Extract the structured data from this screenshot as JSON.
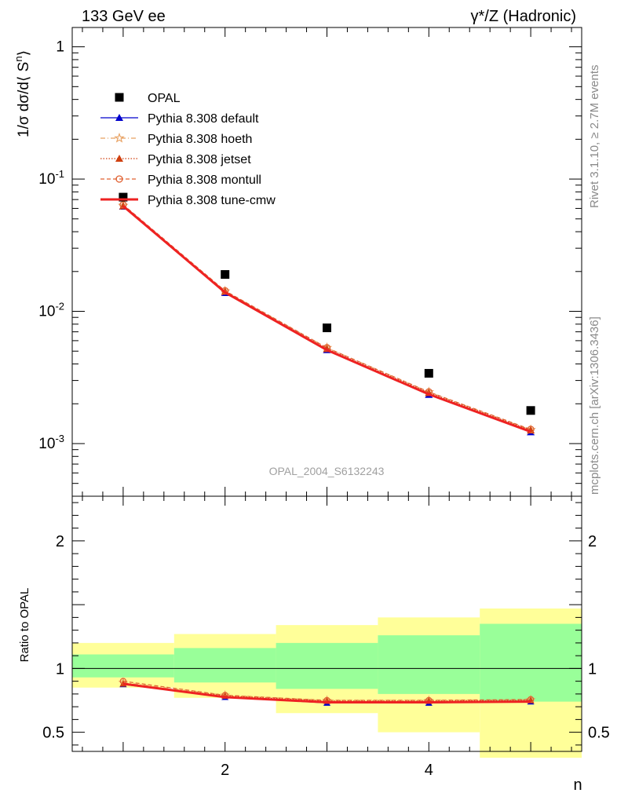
{
  "header": {
    "left": "133 GeV ee",
    "right": "γ*/Z (Hadronic)"
  },
  "side": {
    "rivet": "Rivet 3.1.10, ≥ 2.7M events",
    "mcplots": "mcplots.cern.ch [arXiv:1306.3436]"
  },
  "watermark": "OPAL_2004_S6132243",
  "colors": {
    "data": "#000000",
    "default": "#0000cc",
    "hoeth": "#e8a060",
    "jetset": "#d04010",
    "montull": "#e06030",
    "cmw": "#ee2222",
    "band_green": "#99ff99",
    "band_yellow": "#ffff99"
  },
  "chart_data": [
    {
      "type": "scatter",
      "yscale": "log",
      "ylabel": "1/σ dσ/d⟨ S^n⟩",
      "xlim": [
        0.5,
        5.5
      ],
      "ylim": [
        0.0004,
        1.4
      ],
      "ytick_labels": [
        "1",
        "10^-1",
        "10^-2",
        "10^-3"
      ],
      "legend_position": "top-left",
      "x": [
        1,
        2,
        3,
        4,
        5
      ],
      "series": [
        {
          "name": "OPAL",
          "marker": "square",
          "values": [
            0.073,
            0.019,
            0.0075,
            0.0034,
            0.00178
          ]
        },
        {
          "name": "Pythia 8.308 default",
          "marker": "triangle",
          "values": [
            0.062,
            0.0138,
            0.0051,
            0.00234,
            0.00122
          ]
        },
        {
          "name": "Pythia 8.308 hoeth",
          "marker": "star",
          "values": [
            0.063,
            0.0142,
            0.0053,
            0.00245,
            0.00127
          ]
        },
        {
          "name": "Pythia 8.308 jetset",
          "marker": "triangle",
          "values": [
            0.0625,
            0.0141,
            0.0052,
            0.00242,
            0.00126
          ]
        },
        {
          "name": "Pythia 8.308 montull",
          "marker": "circle",
          "values": [
            0.064,
            0.0143,
            0.0053,
            0.00246,
            0.00128
          ]
        },
        {
          "name": "Pythia 8.308 tune-cmw",
          "marker": "none",
          "values": [
            0.0625,
            0.0139,
            0.0051,
            0.00236,
            0.00123
          ]
        }
      ]
    },
    {
      "type": "line",
      "ylabel": "Ratio to OPAL",
      "xlabel": "n",
      "xlim": [
        0.5,
        5.5
      ],
      "ylim": [
        0.35,
        2.35
      ],
      "x_ticks": [
        2,
        4
      ],
      "y_ticks": [
        0.5,
        1,
        2
      ],
      "reference_line": 1,
      "bands": {
        "edges": [
          0.5,
          1.5,
          2.5,
          3.5,
          4.5,
          5.5
        ],
        "yellow": [
          [
            0.85,
            1.2
          ],
          [
            0.77,
            1.27
          ],
          [
            0.65,
            1.34
          ],
          [
            0.5,
            1.4
          ],
          [
            0.3,
            1.47
          ]
        ],
        "green": [
          [
            0.93,
            1.11
          ],
          [
            0.89,
            1.16
          ],
          [
            0.84,
            1.2
          ],
          [
            0.8,
            1.26
          ],
          [
            0.74,
            1.35
          ]
        ]
      },
      "x": [
        1,
        2,
        3,
        4,
        5
      ],
      "series": [
        {
          "name": "Pythia 8.308 default",
          "values": [
            0.875,
            0.775,
            0.73,
            0.73,
            0.74
          ]
        },
        {
          "name": "Pythia 8.308 hoeth",
          "values": [
            0.89,
            0.79,
            0.75,
            0.75,
            0.755
          ]
        },
        {
          "name": "Pythia 8.308 jetset",
          "values": [
            0.88,
            0.785,
            0.745,
            0.745,
            0.75
          ]
        },
        {
          "name": "Pythia 8.308 montull",
          "values": [
            0.9,
            0.79,
            0.75,
            0.75,
            0.757
          ]
        },
        {
          "name": "Pythia 8.308 tune-cmw",
          "values": [
            0.88,
            0.775,
            0.735,
            0.735,
            0.74
          ]
        }
      ]
    }
  ]
}
